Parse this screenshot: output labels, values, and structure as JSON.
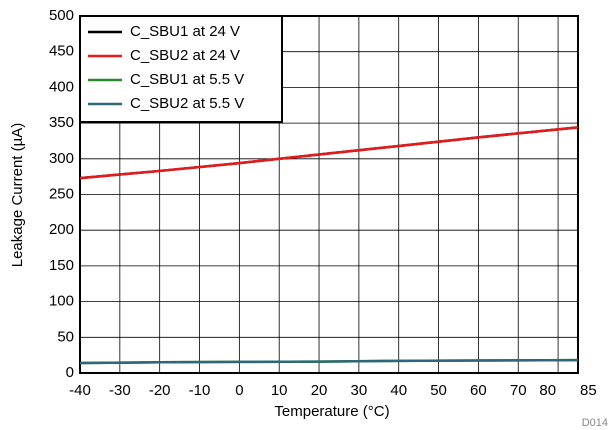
{
  "chart_data": {
    "type": "line",
    "x_label": "Temperature (°C)",
    "y_label": "Leakage Current (µA)",
    "figure_id": "D014",
    "x": [
      -40,
      -20,
      0,
      20,
      40,
      60,
      85
    ],
    "series": [
      {
        "name": "C_SBU1 at 24 V",
        "color": "#000000",
        "values": [
          273,
          283,
          294,
          306,
          318,
          330,
          344
        ]
      },
      {
        "name": "C_SBU2 at 24 V",
        "color": "#e8191b",
        "values": [
          273,
          283,
          294,
          306,
          318,
          330,
          344
        ]
      },
      {
        "name": "C_SBU1 at 5.5 V",
        "color": "#2a8a2a",
        "values": [
          14,
          15,
          15.5,
          16,
          17,
          17.5,
          18
        ]
      },
      {
        "name": "C_SBU2 at 5.5 V",
        "color": "#2e6878",
        "values": [
          14,
          15,
          15.5,
          16,
          17,
          17.5,
          18
        ]
      }
    ],
    "xlim": [
      -40,
      85
    ],
    "xticks": [
      -40,
      -30,
      -20,
      -10,
      0,
      10,
      20,
      30,
      40,
      50,
      60,
      70,
      80,
      85
    ],
    "ylim": [
      0,
      500
    ],
    "yticks": [
      0,
      50,
      100,
      150,
      200,
      250,
      300,
      350,
      400,
      450,
      500
    ],
    "grid": true,
    "legend": "upper-left"
  }
}
